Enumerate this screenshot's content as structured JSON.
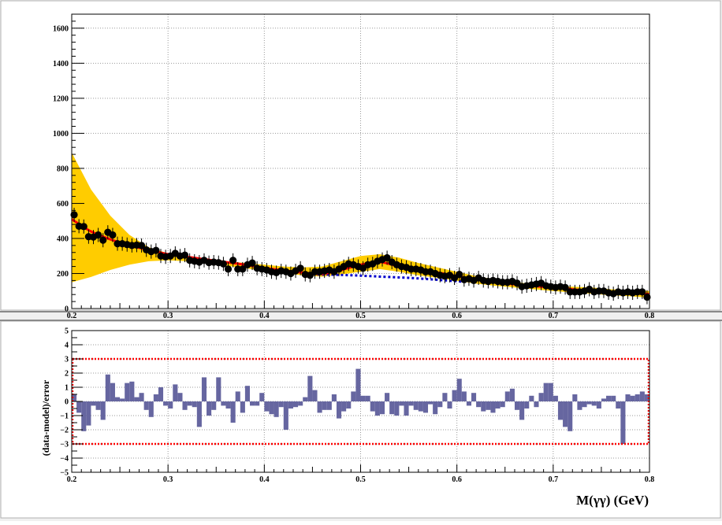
{
  "chart_data": [
    {
      "type": "scatter",
      "panel": "fit",
      "xlim": [
        0.2,
        0.8
      ],
      "ylim": [
        0,
        1680
      ],
      "x_ticks": [
        0.2,
        0.3,
        0.4,
        0.5,
        0.6,
        0.7,
        0.8
      ],
      "x_tick_labels": [
        "0.2",
        "0.3",
        "0.4",
        "0.5",
        "0.6",
        "0.7",
        "0.8"
      ],
      "y_ticks": [
        0,
        200,
        400,
        600,
        800,
        1000,
        1200,
        1400,
        1600
      ],
      "y_tick_labels": [
        "0",
        "200",
        "400",
        "600",
        "800",
        "1000",
        "1200",
        "1400",
        "1600"
      ],
      "grid": true,
      "colors": {
        "data": "#000000",
        "fit": "#ff0000",
        "background": "#0000cc",
        "band": "#ffcc00"
      },
      "series": [
        {
          "kind": "points",
          "x": [
            0.2025,
            0.2075,
            0.2125,
            0.2175,
            0.2225,
            0.2275,
            0.2325,
            0.2375,
            0.2425,
            0.2475,
            0.2525,
            0.2575,
            0.2625,
            0.2675,
            0.2725,
            0.2775,
            0.2825,
            0.2875,
            0.2925,
            0.2975,
            0.3025,
            0.3075,
            0.3125,
            0.3175,
            0.3225,
            0.3275,
            0.3325,
            0.3375,
            0.3425,
            0.3475,
            0.3525,
            0.3575,
            0.3625,
            0.3675,
            0.3725,
            0.3775,
            0.3825,
            0.3875,
            0.3925,
            0.3975,
            0.4025,
            0.4075,
            0.4125,
            0.4175,
            0.4225,
            0.4275,
            0.4325,
            0.4375,
            0.4425,
            0.4475,
            0.4525,
            0.4575,
            0.4625,
            0.4675,
            0.4725,
            0.4775,
            0.4825,
            0.4875,
            0.4925,
            0.4975,
            0.5025,
            0.5075,
            0.5125,
            0.5175,
            0.5225,
            0.5275,
            0.5325,
            0.5375,
            0.5425,
            0.5475,
            0.5525,
            0.5575,
            0.5625,
            0.5675,
            0.5725,
            0.5775,
            0.5825,
            0.5875,
            0.5925,
            0.5975,
            0.6025,
            0.6075,
            0.6125,
            0.6175,
            0.6225,
            0.6275,
            0.6325,
            0.6375,
            0.6425,
            0.6475,
            0.6525,
            0.6575,
            0.6625,
            0.6675,
            0.6725,
            0.6775,
            0.6825,
            0.6875,
            0.6925,
            0.6975,
            0.7025,
            0.7075,
            0.7125,
            0.7175,
            0.7225,
            0.7275,
            0.7325,
            0.7375,
            0.7425,
            0.7475,
            0.7525,
            0.7575,
            0.7625,
            0.7675,
            0.7725,
            0.7775,
            0.7825,
            0.7875,
            0.7925,
            0.7975
          ],
          "y": [
            535,
            470,
            468,
            410,
            408,
            420,
            390,
            435,
            420,
            370,
            370,
            365,
            360,
            362,
            360,
            335,
            325,
            332,
            300,
            295,
            300,
            315,
            300,
            305,
            275,
            270,
            265,
            275,
            262,
            265,
            262,
            255,
            225,
            275,
            225,
            225,
            250,
            260,
            230,
            225,
            220,
            210,
            205,
            215,
            210,
            200,
            215,
            230,
            195,
            190,
            210,
            210,
            215,
            220,
            210,
            225,
            240,
            255,
            250,
            240,
            230,
            250,
            255,
            270,
            280,
            290,
            265,
            250,
            240,
            235,
            225,
            225,
            220,
            210,
            210,
            200,
            190,
            185,
            190,
            175,
            195,
            165,
            170,
            160,
            175,
            160,
            155,
            160,
            155,
            150,
            150,
            155,
            145,
            125,
            130,
            135,
            140,
            145,
            130,
            125,
            120,
            125,
            120,
            95,
            95,
            95,
            100,
            110,
            95,
            100,
            100,
            90,
            85,
            95,
            90,
            95,
            90,
            95,
            95,
            65
          ]
        },
        {
          "kind": "fit_curve",
          "x": [
            0.2,
            0.22,
            0.24,
            0.26,
            0.28,
            0.3,
            0.32,
            0.34,
            0.36,
            0.38,
            0.4,
            0.42,
            0.44,
            0.46,
            0.48,
            0.5,
            0.52,
            0.54,
            0.56,
            0.58,
            0.6,
            0.62,
            0.64,
            0.66,
            0.68,
            0.7,
            0.72,
            0.74,
            0.76,
            0.78,
            0.8
          ],
          "y": [
            510,
            440,
            395,
            360,
            335,
            310,
            295,
            280,
            265,
            250,
            232,
            218,
            205,
            198,
            220,
            250,
            265,
            240,
            220,
            205,
            185,
            165,
            150,
            138,
            128,
            120,
            110,
            100,
            95,
            88,
            82
          ]
        },
        {
          "kind": "background_curve",
          "x": [
            0.45,
            0.47,
            0.49,
            0.51,
            0.53,
            0.55,
            0.57,
            0.59,
            0.61
          ],
          "y": [
            195,
            193,
            190,
            185,
            180,
            175,
            168,
            160,
            152
          ]
        },
        {
          "kind": "uncertainty_band",
          "x": [
            0.2,
            0.22,
            0.24,
            0.26,
            0.28,
            0.3,
            0.32,
            0.34,
            0.36,
            0.38,
            0.4,
            0.42,
            0.44,
            0.46,
            0.48,
            0.5,
            0.52,
            0.54,
            0.56,
            0.58,
            0.6,
            0.62,
            0.64,
            0.66,
            0.68,
            0.7,
            0.72,
            0.74,
            0.76,
            0.78,
            0.8
          ],
          "upper": [
            890,
            680,
            530,
            420,
            350,
            315,
            300,
            285,
            270,
            260,
            250,
            240,
            235,
            240,
            270,
            300,
            310,
            290,
            260,
            235,
            210,
            185,
            165,
            150,
            140,
            130,
            125,
            120,
            110,
            105,
            100
          ],
          "lower": [
            150,
            180,
            220,
            250,
            270,
            275,
            270,
            260,
            245,
            230,
            215,
            200,
            190,
            182,
            195,
            210,
            225,
            210,
            190,
            175,
            158,
            142,
            130,
            120,
            110,
            100,
            92,
            85,
            75,
            70,
            62
          ]
        }
      ]
    },
    {
      "type": "bar",
      "panel": "residuals",
      "ylabel": "(data-model)/error",
      "xlabel": "M(γγ) (GeV)",
      "xlim": [
        0.2,
        0.8
      ],
      "ylim": [
        -5,
        5
      ],
      "x_ticks": [
        0.2,
        0.3,
        0.4,
        0.5,
        0.6,
        0.7,
        0.8
      ],
      "x_tick_labels": [
        "0.2",
        "0.3",
        "0.4",
        "0.5",
        "0.6",
        "0.7",
        "0.8"
      ],
      "y_ticks": [
        -5,
        -4,
        -3,
        -2,
        -1,
        0,
        1,
        2,
        3,
        4,
        5
      ],
      "y_tick_labels": [
        "−5",
        "−4",
        "−3",
        "−2",
        "−1",
        "0",
        "1",
        "2",
        "3",
        "4",
        "5"
      ],
      "bounds": [
        -3,
        3
      ],
      "grid": true,
      "colors": {
        "bar": "#6666a0",
        "bounds": "#ff0000"
      },
      "bin_width": 0.005,
      "x": [
        0.2025,
        0.2075,
        0.2125,
        0.2175,
        0.2225,
        0.2275,
        0.2325,
        0.2375,
        0.2425,
        0.2475,
        0.2525,
        0.2575,
        0.2625,
        0.2675,
        0.2725,
        0.2775,
        0.2825,
        0.2875,
        0.2925,
        0.2975,
        0.3025,
        0.3075,
        0.3125,
        0.3175,
        0.3225,
        0.3275,
        0.3325,
        0.3375,
        0.3425,
        0.3475,
        0.3525,
        0.3575,
        0.3625,
        0.3675,
        0.3725,
        0.3775,
        0.3825,
        0.3875,
        0.3925,
        0.3975,
        0.4025,
        0.4075,
        0.4125,
        0.4175,
        0.4225,
        0.4275,
        0.4325,
        0.4375,
        0.4425,
        0.4475,
        0.4525,
        0.4575,
        0.4625,
        0.4675,
        0.4725,
        0.4775,
        0.4825,
        0.4875,
        0.4925,
        0.4975,
        0.5025,
        0.5075,
        0.5125,
        0.5175,
        0.5225,
        0.5275,
        0.5325,
        0.5375,
        0.5425,
        0.5475,
        0.5525,
        0.5575,
        0.5625,
        0.5675,
        0.5725,
        0.5775,
        0.5825,
        0.5875,
        0.5925,
        0.5975,
        0.6025,
        0.6075,
        0.6125,
        0.6175,
        0.6225,
        0.6275,
        0.6325,
        0.6375,
        0.6425,
        0.6475,
        0.6525,
        0.6575,
        0.6625,
        0.6675,
        0.6725,
        0.6775,
        0.6825,
        0.6875,
        0.6925,
        0.6975,
        0.7025,
        0.7075,
        0.7125,
        0.7175,
        0.7225,
        0.7275,
        0.7325,
        0.7375,
        0.7425,
        0.7475,
        0.7525,
        0.7575,
        0.7625,
        0.7675,
        0.7725,
        0.7775,
        0.7825,
        0.7875,
        0.7925,
        0.7975
      ],
      "values": [
        0.5,
        -0.8,
        -2.1,
        -1.7,
        -0.3,
        -0.6,
        -1.3,
        1.9,
        1.3,
        0.3,
        0.2,
        1.3,
        1.4,
        0.3,
        0.6,
        -0.6,
        -1.1,
        0.5,
        1.0,
        -0.3,
        -0.5,
        1.2,
        0.6,
        -0.6,
        -0.3,
        -0.4,
        -1.8,
        1.7,
        -1.0,
        -0.6,
        1.7,
        -0.3,
        -0.5,
        -1.5,
        0.7,
        -0.8,
        1.1,
        -0.3,
        -0.3,
        0.6,
        -0.7,
        -0.9,
        -1.1,
        -0.4,
        -2.0,
        -0.5,
        -0.4,
        -0.3,
        0.3,
        1.8,
        0.8,
        -0.8,
        -0.6,
        -0.6,
        0.5,
        -1.2,
        -0.7,
        -0.5,
        0.7,
        2.3,
        0.4,
        0.4,
        -0.7,
        -1.0,
        -0.9,
        0.6,
        -0.9,
        -1.0,
        -0.3,
        -1.0,
        -0.3,
        -0.6,
        -0.7,
        -0.8,
        -0.2,
        -0.9,
        -0.4,
        0.6,
        -0.5,
        0.8,
        1.6,
        0.7,
        -0.3,
        0.6,
        -0.4,
        -0.7,
        -0.6,
        -0.8,
        -0.5,
        -0.4,
        0.7,
        0.9,
        -0.6,
        -1.3,
        -0.5,
        0.4,
        -0.4,
        0.6,
        1.3,
        1.3,
        0.4,
        -1.3,
        -1.8,
        -2.1,
        0.5,
        -0.6,
        -0.4,
        -0.2,
        -0.3,
        -0.5,
        0.2,
        0.4,
        0.4,
        -0.5,
        -3.0,
        0.5,
        0.4,
        0.5,
        0.7,
        0.5
      ]
    }
  ]
}
